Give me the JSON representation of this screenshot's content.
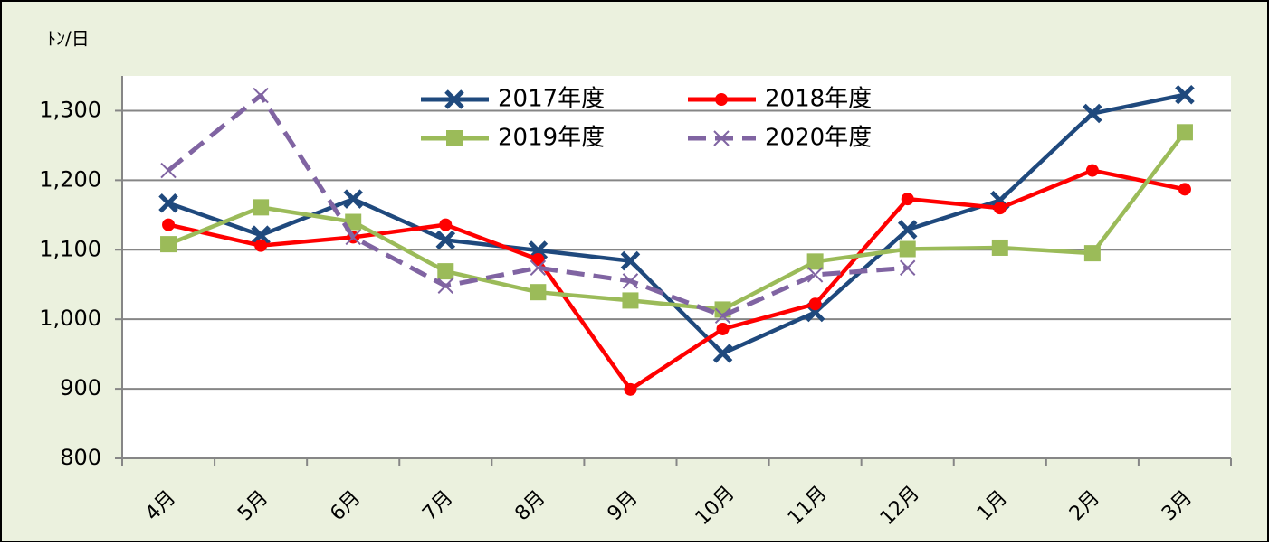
{
  "chart_data": {
    "type": "line",
    "y_unit_label": "ﾄﾝ/日",
    "categories": [
      "4月",
      "5月",
      "6月",
      "7月",
      "8月",
      "9月",
      "10月",
      "11月",
      "12月",
      "1月",
      "2月",
      "3月"
    ],
    "series": [
      {
        "name": "2017年度",
        "color": "#1f497d",
        "marker": "x-thick",
        "dashed": false,
        "values": [
          1167,
          1121,
          1173,
          1114,
          1099,
          1084,
          951,
          1010,
          1129,
          1171,
          1296,
          1323
        ]
      },
      {
        "name": "2018年度",
        "color": "#ff0000",
        "marker": "circle",
        "dashed": false,
        "values": [
          1136,
          1106,
          1118,
          1136,
          1086,
          899,
          986,
          1022,
          1173,
          1160,
          1214,
          1187
        ]
      },
      {
        "name": "2019年度",
        "color": "#9bbb59",
        "marker": "square",
        "dashed": false,
        "values": [
          1108,
          1161,
          1140,
          1069,
          1039,
          1027,
          1014,
          1083,
          1101,
          1103,
          1095,
          1269
        ]
      },
      {
        "name": "2020年度",
        "color": "#8064a2",
        "marker": "x-thin",
        "dashed": true,
        "values": [
          1214,
          1322,
          1118,
          1048,
          1074,
          1055,
          1005,
          1064,
          1074,
          null,
          null,
          null
        ]
      }
    ],
    "ylim": [
      800,
      1350
    ],
    "yticks": [
      800,
      900,
      {
        "value": 1000,
        "label": "1,000"
      },
      {
        "value": 1100,
        "label": "1,100"
      },
      {
        "value": 1200,
        "label": "1,200"
      },
      {
        "value": 1300,
        "label": "1,300"
      }
    ],
    "grid": true,
    "legend": "top"
  }
}
